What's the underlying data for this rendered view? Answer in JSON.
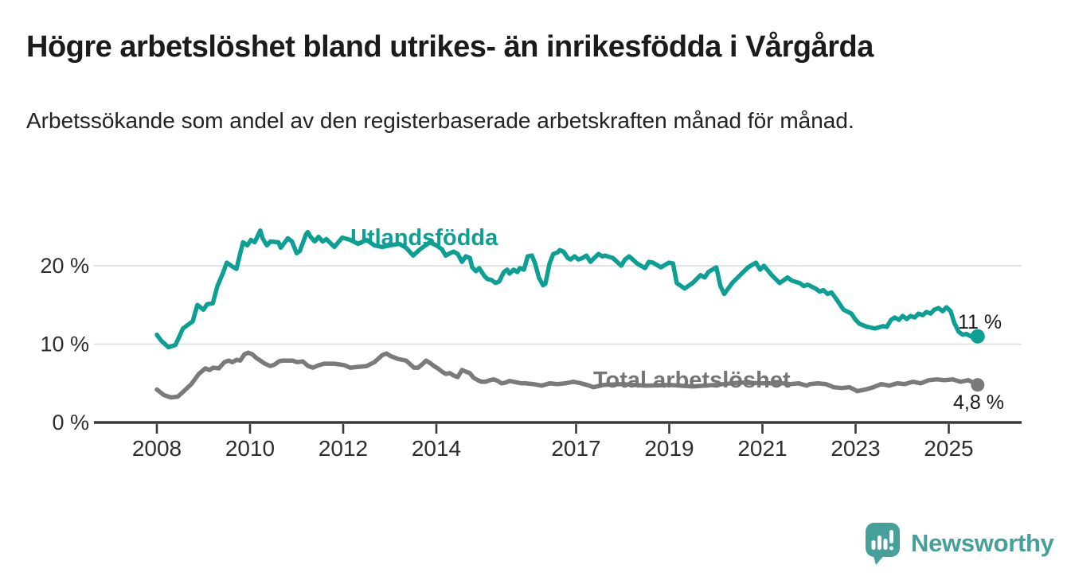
{
  "title": "Högre arbetslöshet bland utrikes- än inrikesfödda i Vårgårda",
  "subtitle": "Arbetssökande som andel av den registerbaserade arbetskraften månad för månad.",
  "footer": {
    "brand": "Newsworthy",
    "logo_icon": "speech-bubble-bar-chart"
  },
  "colors": {
    "accent_teal": "#0ba093",
    "line_gray": "#7a7a7a",
    "brand_teal": "#45a09a",
    "grid": "#dcdcdc",
    "axis": "#383838",
    "text_dark": "#1b1b1b",
    "tick_text": "#2e2e2e"
  },
  "chart_data": {
    "type": "line",
    "x_unit": "decimal_year",
    "xlim": [
      2007.65,
      2026.0
    ],
    "ylim": [
      0,
      25.5
    ],
    "grid": "horizontal",
    "legend_position": "inline-labels",
    "xticks": [
      2008,
      2010,
      2012,
      2014,
      2017,
      2019,
      2021,
      2023,
      2025
    ],
    "yticks": [
      {
        "v": 0,
        "label": "0 %"
      },
      {
        "v": 10,
        "label": "10 %"
      },
      {
        "v": 20,
        "label": "20 %"
      }
    ],
    "series": [
      {
        "name": "Utlandsfödda",
        "color": "#0ba093",
        "end_label": "11 %",
        "end_value": 11,
        "points": [
          [
            2008.0,
            11.2
          ],
          [
            2008.1,
            10.4
          ],
          [
            2008.25,
            9.6
          ],
          [
            2008.4,
            9.9
          ],
          [
            2008.56,
            12.0
          ],
          [
            2008.77,
            12.9
          ],
          [
            2008.87,
            15.0
          ],
          [
            2009.0,
            14.4
          ],
          [
            2009.08,
            15.1
          ],
          [
            2009.2,
            15.2
          ],
          [
            2009.3,
            17.4
          ],
          [
            2009.42,
            19.1
          ],
          [
            2009.5,
            20.4
          ],
          [
            2009.62,
            19.9
          ],
          [
            2009.71,
            19.6
          ],
          [
            2009.79,
            21.6
          ],
          [
            2009.85,
            23.0
          ],
          [
            2009.94,
            22.6
          ],
          [
            2010.02,
            23.3
          ],
          [
            2010.1,
            23.0
          ],
          [
            2010.22,
            24.5
          ],
          [
            2010.27,
            23.5
          ],
          [
            2010.36,
            22.6
          ],
          [
            2010.44,
            23.1
          ],
          [
            2010.61,
            23.0
          ],
          [
            2010.66,
            22.3
          ],
          [
            2010.81,
            23.5
          ],
          [
            2010.9,
            23.1
          ],
          [
            2011.0,
            21.6
          ],
          [
            2011.07,
            21.9
          ],
          [
            2011.2,
            24.0
          ],
          [
            2011.24,
            24.3
          ],
          [
            2011.3,
            23.7
          ],
          [
            2011.39,
            23.1
          ],
          [
            2011.47,
            23.7
          ],
          [
            2011.56,
            23.1
          ],
          [
            2011.64,
            23.4
          ],
          [
            2011.81,
            22.4
          ],
          [
            2011.98,
            23.6
          ],
          [
            2012.15,
            23.3
          ],
          [
            2012.32,
            22.8
          ],
          [
            2012.5,
            23.3
          ],
          [
            2012.67,
            22.6
          ],
          [
            2012.84,
            22.4
          ],
          [
            2013.0,
            22.6
          ],
          [
            2013.2,
            22.8
          ],
          [
            2013.35,
            22.3
          ],
          [
            2013.5,
            21.3
          ],
          [
            2013.65,
            22.1
          ],
          [
            2013.86,
            23.0
          ],
          [
            2014.0,
            22.6
          ],
          [
            2014.12,
            22.1
          ],
          [
            2014.2,
            21.3
          ],
          [
            2014.29,
            21.6
          ],
          [
            2014.37,
            21.8
          ],
          [
            2014.46,
            21.5
          ],
          [
            2014.55,
            20.5
          ],
          [
            2014.63,
            21.2
          ],
          [
            2014.72,
            21.0
          ],
          [
            2014.77,
            19.8
          ],
          [
            2014.85,
            19.3
          ],
          [
            2014.92,
            19.7
          ],
          [
            2015.03,
            18.7
          ],
          [
            2015.1,
            18.3
          ],
          [
            2015.18,
            18.2
          ],
          [
            2015.27,
            17.8
          ],
          [
            2015.35,
            18.0
          ],
          [
            2015.45,
            19.2
          ],
          [
            2015.52,
            19.5
          ],
          [
            2015.57,
            19.0
          ],
          [
            2015.66,
            19.5
          ],
          [
            2015.74,
            19.2
          ],
          [
            2015.79,
            19.7
          ],
          [
            2015.88,
            19.5
          ],
          [
            2015.96,
            21.2
          ],
          [
            2016.05,
            21.3
          ],
          [
            2016.12,
            20.3
          ],
          [
            2016.2,
            18.5
          ],
          [
            2016.29,
            17.5
          ],
          [
            2016.34,
            17.7
          ],
          [
            2016.43,
            20.3
          ],
          [
            2016.51,
            21.5
          ],
          [
            2016.6,
            21.7
          ],
          [
            2016.65,
            22.0
          ],
          [
            2016.73,
            21.8
          ],
          [
            2016.82,
            21.0
          ],
          [
            2016.88,
            20.8
          ],
          [
            2016.97,
            21.2
          ],
          [
            2017.05,
            20.8
          ],
          [
            2017.14,
            21.0
          ],
          [
            2017.22,
            21.3
          ],
          [
            2017.31,
            20.5
          ],
          [
            2017.39,
            21.0
          ],
          [
            2017.48,
            21.5
          ],
          [
            2017.56,
            21.2
          ],
          [
            2017.62,
            21.3
          ],
          [
            2017.79,
            21.0
          ],
          [
            2017.97,
            20.0
          ],
          [
            2018.05,
            20.8
          ],
          [
            2018.14,
            21.2
          ],
          [
            2018.31,
            20.3
          ],
          [
            2018.48,
            19.7
          ],
          [
            2018.56,
            20.5
          ],
          [
            2018.65,
            20.4
          ],
          [
            2018.82,
            19.8
          ],
          [
            2018.99,
            20.4
          ],
          [
            2019.08,
            20.3
          ],
          [
            2019.16,
            17.8
          ],
          [
            2019.33,
            17.1
          ],
          [
            2019.5,
            17.8
          ],
          [
            2019.67,
            18.8
          ],
          [
            2019.76,
            18.5
          ],
          [
            2019.84,
            19.2
          ],
          [
            2020.01,
            19.8
          ],
          [
            2020.1,
            17.4
          ],
          [
            2020.18,
            16.4
          ],
          [
            2020.35,
            17.8
          ],
          [
            2020.52,
            18.8
          ],
          [
            2020.69,
            19.8
          ],
          [
            2020.86,
            20.4
          ],
          [
            2020.95,
            19.5
          ],
          [
            2021.03,
            20.0
          ],
          [
            2021.2,
            18.8
          ],
          [
            2021.37,
            17.8
          ],
          [
            2021.54,
            18.5
          ],
          [
            2021.63,
            18.1
          ],
          [
            2021.8,
            17.8
          ],
          [
            2021.89,
            17.4
          ],
          [
            2021.97,
            17.6
          ],
          [
            2022.14,
            17.1
          ],
          [
            2022.23,
            16.7
          ],
          [
            2022.31,
            16.9
          ],
          [
            2022.4,
            16.4
          ],
          [
            2022.48,
            16.6
          ],
          [
            2022.57,
            15.9
          ],
          [
            2022.74,
            14.4
          ],
          [
            2022.91,
            13.9
          ],
          [
            2023.0,
            13.1
          ],
          [
            2023.08,
            12.6
          ],
          [
            2023.25,
            12.2
          ],
          [
            2023.42,
            12.0
          ],
          [
            2023.59,
            12.3
          ],
          [
            2023.67,
            12.2
          ],
          [
            2023.76,
            13.1
          ],
          [
            2023.84,
            13.4
          ],
          [
            2023.93,
            13.1
          ],
          [
            2024.01,
            13.6
          ],
          [
            2024.1,
            13.2
          ],
          [
            2024.18,
            13.6
          ],
          [
            2024.27,
            13.4
          ],
          [
            2024.35,
            13.9
          ],
          [
            2024.44,
            13.7
          ],
          [
            2024.52,
            14.1
          ],
          [
            2024.61,
            13.9
          ],
          [
            2024.69,
            14.4
          ],
          [
            2024.78,
            14.6
          ],
          [
            2024.87,
            14.2
          ],
          [
            2024.95,
            14.7
          ],
          [
            2025.04,
            14.2
          ],
          [
            2025.12,
            12.7
          ],
          [
            2025.21,
            11.6
          ],
          [
            2025.3,
            11.2
          ],
          [
            2025.38,
            11.3
          ],
          [
            2025.47,
            11.0
          ],
          [
            2025.55,
            11.3
          ],
          [
            2025.62,
            11.0
          ]
        ]
      },
      {
        "name": "Total arbetslöshet",
        "color": "#7a7a7a",
        "end_label": "4,8 %",
        "end_value": 4.8,
        "points": [
          [
            2008.0,
            4.2
          ],
          [
            2008.15,
            3.5
          ],
          [
            2008.3,
            3.2
          ],
          [
            2008.45,
            3.3
          ],
          [
            2008.56,
            3.9
          ],
          [
            2008.74,
            4.9
          ],
          [
            2008.9,
            6.2
          ],
          [
            2009.04,
            6.9
          ],
          [
            2009.13,
            6.7
          ],
          [
            2009.21,
            7.0
          ],
          [
            2009.33,
            6.9
          ],
          [
            2009.45,
            7.7
          ],
          [
            2009.54,
            7.9
          ],
          [
            2009.62,
            7.7
          ],
          [
            2009.71,
            8.0
          ],
          [
            2009.79,
            7.9
          ],
          [
            2009.88,
            8.7
          ],
          [
            2009.96,
            8.9
          ],
          [
            2010.05,
            8.7
          ],
          [
            2010.14,
            8.2
          ],
          [
            2010.22,
            7.9
          ],
          [
            2010.32,
            7.5
          ],
          [
            2010.44,
            7.2
          ],
          [
            2010.53,
            7.4
          ],
          [
            2010.62,
            7.8
          ],
          [
            2010.7,
            7.9
          ],
          [
            2010.79,
            7.9
          ],
          [
            2010.91,
            7.9
          ],
          [
            2011.01,
            7.7
          ],
          [
            2011.13,
            7.8
          ],
          [
            2011.25,
            7.2
          ],
          [
            2011.35,
            7.0
          ],
          [
            2011.47,
            7.3
          ],
          [
            2011.59,
            7.5
          ],
          [
            2011.69,
            7.5
          ],
          [
            2011.81,
            7.5
          ],
          [
            2011.93,
            7.4
          ],
          [
            2012.03,
            7.3
          ],
          [
            2012.15,
            7.0
          ],
          [
            2012.32,
            7.1
          ],
          [
            2012.5,
            7.2
          ],
          [
            2012.67,
            7.7
          ],
          [
            2012.84,
            8.6
          ],
          [
            2012.93,
            8.8
          ],
          [
            2013.01,
            8.5
          ],
          [
            2013.18,
            8.1
          ],
          [
            2013.35,
            7.9
          ],
          [
            2013.52,
            7.0
          ],
          [
            2013.61,
            7.0
          ],
          [
            2013.69,
            7.4
          ],
          [
            2013.78,
            7.9
          ],
          [
            2013.86,
            7.6
          ],
          [
            2013.95,
            7.2
          ],
          [
            2014.03,
            6.9
          ],
          [
            2014.12,
            6.5
          ],
          [
            2014.2,
            6.2
          ],
          [
            2014.29,
            6.3
          ],
          [
            2014.37,
            6.0
          ],
          [
            2014.46,
            5.8
          ],
          [
            2014.55,
            6.7
          ],
          [
            2014.63,
            6.5
          ],
          [
            2014.72,
            6.3
          ],
          [
            2014.8,
            5.7
          ],
          [
            2014.89,
            5.4
          ],
          [
            2014.97,
            5.2
          ],
          [
            2015.06,
            5.2
          ],
          [
            2015.15,
            5.4
          ],
          [
            2015.23,
            5.5
          ],
          [
            2015.32,
            5.3
          ],
          [
            2015.4,
            5.0
          ],
          [
            2015.49,
            5.1
          ],
          [
            2015.57,
            5.3
          ],
          [
            2015.66,
            5.2
          ],
          [
            2015.74,
            5.1
          ],
          [
            2015.83,
            5.0
          ],
          [
            2015.91,
            5.0
          ],
          [
            2016.08,
            4.9
          ],
          [
            2016.26,
            4.7
          ],
          [
            2016.43,
            5.0
          ],
          [
            2016.6,
            4.9
          ],
          [
            2016.77,
            5.0
          ],
          [
            2016.94,
            5.2
          ],
          [
            2017.11,
            5.0
          ],
          [
            2017.28,
            4.7
          ],
          [
            2017.37,
            4.5
          ],
          [
            2017.6,
            4.8
          ],
          [
            2018.0,
            4.9
          ],
          [
            2018.5,
            4.7
          ],
          [
            2019.0,
            4.8
          ],
          [
            2019.5,
            4.6
          ],
          [
            2020.0,
            4.8
          ],
          [
            2020.5,
            5.1
          ],
          [
            2021.0,
            5.0
          ],
          [
            2021.44,
            5.0
          ],
          [
            2021.6,
            4.9
          ],
          [
            2021.78,
            5.0
          ],
          [
            2021.95,
            4.7
          ],
          [
            2022.02,
            4.9
          ],
          [
            2022.19,
            5.0
          ],
          [
            2022.36,
            4.9
          ],
          [
            2022.53,
            4.5
          ],
          [
            2022.7,
            4.4
          ],
          [
            2022.87,
            4.5
          ],
          [
            2023.04,
            4.0
          ],
          [
            2023.21,
            4.2
          ],
          [
            2023.38,
            4.5
          ],
          [
            2023.55,
            4.9
          ],
          [
            2023.72,
            4.7
          ],
          [
            2023.89,
            5.0
          ],
          [
            2024.06,
            4.9
          ],
          [
            2024.23,
            5.2
          ],
          [
            2024.4,
            5.0
          ],
          [
            2024.57,
            5.4
          ],
          [
            2024.74,
            5.5
          ],
          [
            2024.91,
            5.4
          ],
          [
            2025.08,
            5.5
          ],
          [
            2025.25,
            5.2
          ],
          [
            2025.42,
            5.4
          ],
          [
            2025.62,
            4.8
          ]
        ]
      }
    ]
  }
}
